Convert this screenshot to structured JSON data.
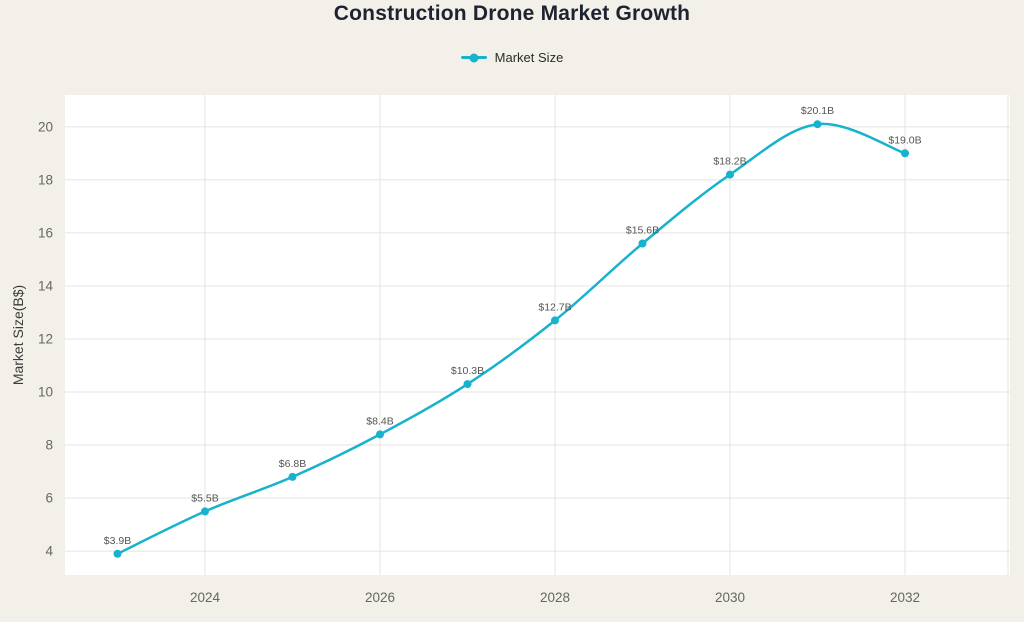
{
  "page": {
    "background": "#f2f0e9"
  },
  "chart_data": {
    "type": "line",
    "title": "Construction Drone Market Growth",
    "ylabel": "Market Size(B$)",
    "xlabel": "",
    "x": [
      2023,
      2024,
      2025,
      2026,
      2027,
      2028,
      2029,
      2030,
      2031,
      2032
    ],
    "series": [
      {
        "name": "Market Size",
        "values": [
          3.9,
          5.5,
          6.8,
          8.4,
          10.3,
          12.7,
          15.6,
          18.2,
          20.1,
          19.0
        ]
      }
    ],
    "point_labels": [
      "$3.9B",
      "$5.5B",
      "$6.8B",
      "$8.4B",
      "$10.3B",
      "$12.7B",
      "$15.6B",
      "$18.2B",
      "$20.1B",
      "$19.0B"
    ],
    "x_ticks": [
      2024,
      2026,
      2028,
      2030,
      2032
    ],
    "x_tick_labels": [
      "2024",
      "2026",
      "2028",
      "2030",
      "2032"
    ],
    "y_ticks": [
      4,
      6,
      8,
      10,
      12,
      14,
      16,
      18,
      20
    ],
    "xlim": [
      2022.4,
      2033.2
    ],
    "ylim": [
      3.1,
      21.2
    ],
    "grid": true,
    "legend_position": "top",
    "line_color": "#17b2cc",
    "plot_background": "#ffffff",
    "grid_color": "#e4e4e0",
    "tick_color": "#666666",
    "label_color": "#555555"
  }
}
